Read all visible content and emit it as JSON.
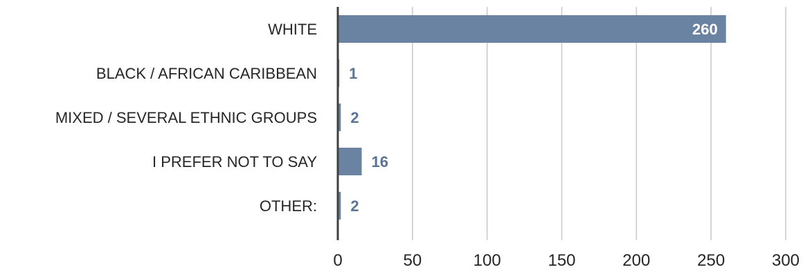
{
  "chart_data": {
    "type": "bar",
    "orientation": "horizontal",
    "categories": [
      "WHITE",
      "BLACK / AFRICAN CARIBBEAN",
      "MIXED / SEVERAL ETHNIC GROUPS",
      "I PREFER NOT TO SAY",
      "OTHER:"
    ],
    "values": [
      260,
      1,
      2,
      16,
      2
    ],
    "data_labels": [
      "260",
      "1",
      "2",
      "16",
      "2"
    ],
    "x_ticks": [
      "0",
      "50",
      "100",
      "150",
      "200",
      "250",
      "300"
    ],
    "xlim": [
      0,
      300
    ],
    "grid": "vertical",
    "legend": "none",
    "title": "",
    "xlabel": "",
    "ylabel": "",
    "colors": {
      "bar": "#6a83a3",
      "label_inside": "#ffffff",
      "label_outside": "#5a7396",
      "gridline": "#c8c8c8",
      "axis": "#404040",
      "text": "#262626"
    }
  }
}
